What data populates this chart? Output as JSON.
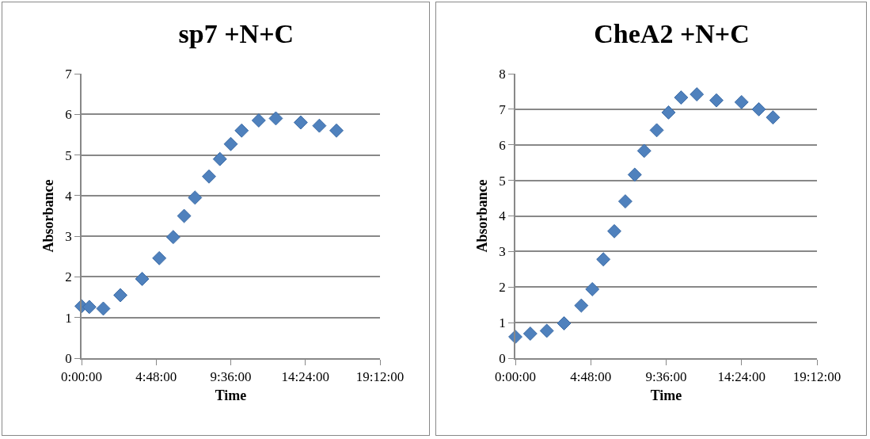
{
  "chart_data": [
    {
      "type": "scatter",
      "title": "sp7 +N+C",
      "xlabel": "Time",
      "ylabel": "Absorbance",
      "marker": "diamond",
      "grid": "y",
      "x": [
        0,
        0.5,
        1.4,
        2.5,
        3.9,
        5.0,
        5.9,
        6.6,
        7.3,
        8.2,
        8.9,
        9.6,
        10.3,
        11.4,
        12.5,
        14.1,
        15.3,
        16.4
      ],
      "series": [
        {
          "color": "#4f81bd",
          "values": [
            1.28,
            1.26,
            1.22,
            1.55,
            1.95,
            2.46,
            2.98,
            3.5,
            3.95,
            4.47,
            4.9,
            5.27,
            5.6,
            5.85,
            5.9,
            5.8,
            5.72,
            5.6
          ]
        }
      ],
      "xlim": [
        0,
        19.2
      ],
      "xticks": [
        {
          "value": 0,
          "label": "0:00:00"
        },
        {
          "value": 4.8,
          "label": "4:48:00"
        },
        {
          "value": 9.6,
          "label": "9:36:00"
        },
        {
          "value": 14.4,
          "label": "14:24:00"
        },
        {
          "value": 19.2,
          "label": "19:12:00"
        }
      ],
      "ylim": [
        0,
        7
      ],
      "yticks": [
        0,
        1,
        2,
        3,
        4,
        5,
        6,
        7
      ]
    },
    {
      "type": "scatter",
      "title": "CheA2 +N+C",
      "xlabel": "Time",
      "ylabel": "Absorbance",
      "marker": "diamond",
      "grid": "y",
      "x": [
        0,
        0.95,
        2.0,
        3.1,
        4.2,
        4.9,
        5.6,
        6.3,
        7.0,
        7.6,
        8.2,
        9.0,
        9.75,
        10.55,
        11.55,
        12.8,
        14.4,
        15.5,
        16.4
      ],
      "series": [
        {
          "color": "#4f81bd",
          "values": [
            0.6,
            0.69,
            0.77,
            0.98,
            1.48,
            1.94,
            2.78,
            3.57,
            4.41,
            5.16,
            5.83,
            6.41,
            6.91,
            7.33,
            7.42,
            7.25,
            7.2,
            7.0,
            6.77
          ]
        }
      ],
      "xlim": [
        0,
        19.2
      ],
      "xticks": [
        {
          "value": 0,
          "label": "0:00:00"
        },
        {
          "value": 4.8,
          "label": "4:48:00"
        },
        {
          "value": 9.6,
          "label": "9:36:00"
        },
        {
          "value": 14.4,
          "label": "14:24:00"
        },
        {
          "value": 19.2,
          "label": "19:12:00"
        }
      ],
      "ylim": [
        0,
        8
      ],
      "yticks": [
        0,
        1,
        2,
        3,
        4,
        5,
        6,
        7,
        8
      ]
    }
  ]
}
